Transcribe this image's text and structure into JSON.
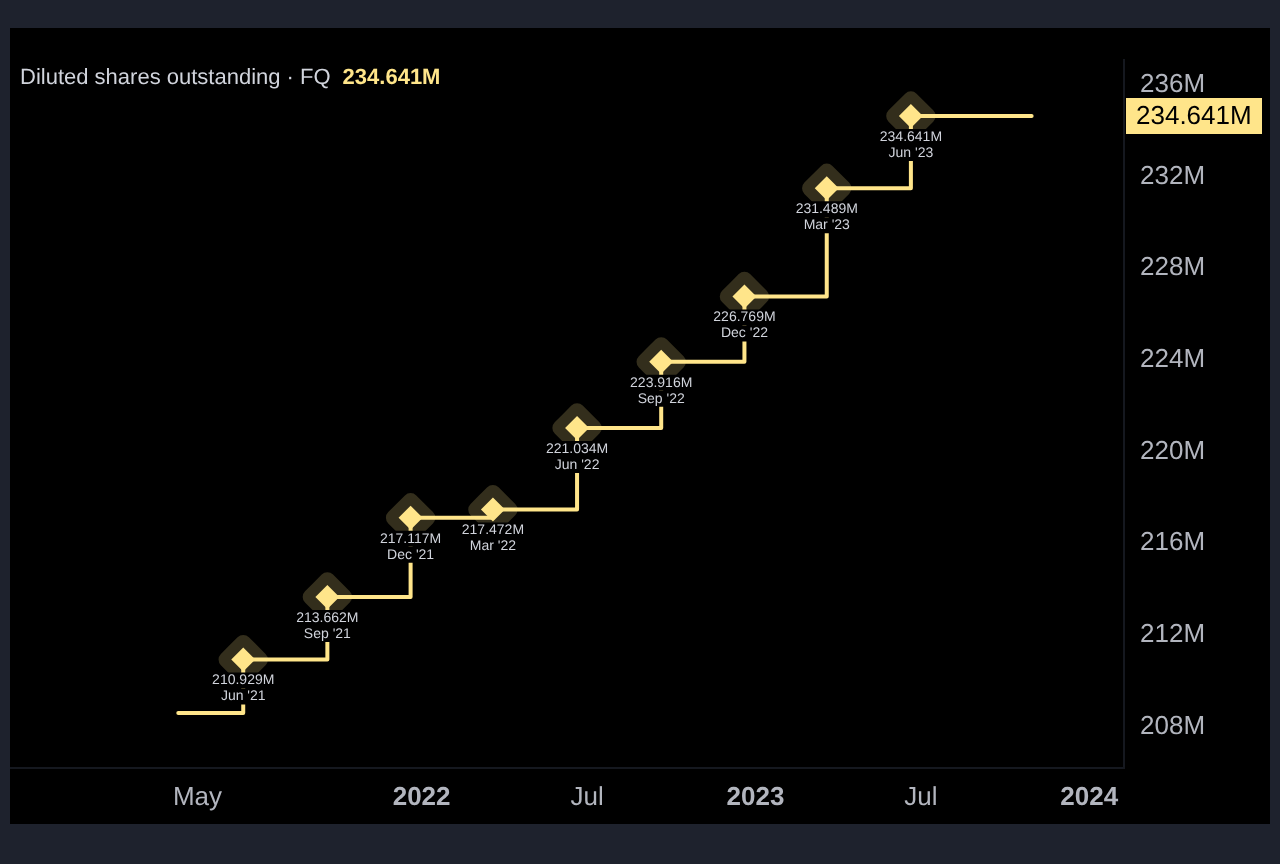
{
  "chart_data": {
    "type": "step",
    "title": "Diluted shares outstanding · FQ",
    "subtitle": "234.641M",
    "x": [
      "2021-04-10",
      "2021-06-20",
      "2021-09-20",
      "2021-12-20",
      "2022-03-20",
      "2022-06-20",
      "2022-09-20",
      "2022-12-20",
      "2023-03-20",
      "2023-06-20",
      "2023-10-30"
    ],
    "series": [
      {
        "color": "#ffe58a",
        "values": [
          208.6,
          210.929,
          213.662,
          217.117,
          217.472,
          221.034,
          223.916,
          226.769,
          231.489,
          234.641,
          234.641
        ],
        "value_labels": [
          null,
          "210.929M",
          "213.662M",
          "217.117M",
          "217.472M",
          "221.034M",
          "223.916M",
          "226.769M",
          "231.489M",
          "234.641M",
          null
        ]
      }
    ],
    "marker": "diamond",
    "xlim": [
      "2020-10-08",
      "2024-02-08"
    ],
    "xticks": [
      {
        "value": "2021-05-01",
        "label": "May"
      },
      {
        "value": "2022-01-01",
        "label": "2022"
      },
      {
        "value": "2022-07-01",
        "label": "Jul"
      },
      {
        "value": "2023-01-01",
        "label": "2023"
      },
      {
        "value": "2023-07-01",
        "label": "Jul"
      },
      {
        "value": "2024-01-01",
        "label": "2024"
      }
    ],
    "ylim": [
      206.2,
      237.1
    ],
    "yticks": [
      {
        "value": 208,
        "label": "208M"
      },
      {
        "value": 212,
        "label": "212M"
      },
      {
        "value": 216,
        "label": "216M"
      },
      {
        "value": 220,
        "label": "220M"
      },
      {
        "value": 224,
        "label": "224M"
      },
      {
        "value": 228,
        "label": "228M"
      },
      {
        "value": 232,
        "label": "232M"
      },
      {
        "value": 236,
        "label": "236M"
      }
    ],
    "annotations": [
      {
        "text": "Jun '21",
        "x": "2021-06-20",
        "y": 210.929
      },
      {
        "text": "Sep '21",
        "x": "2021-09-20",
        "y": 213.662
      },
      {
        "text": "Dec '21",
        "x": "2021-12-20",
        "y": 217.117
      },
      {
        "text": "Mar '22",
        "x": "2022-03-20",
        "y": 217.472
      },
      {
        "text": "Jun '22",
        "x": "2022-06-20",
        "y": 221.034
      },
      {
        "text": "Sep '22",
        "x": "2022-09-20",
        "y": 223.916
      },
      {
        "text": "Dec '22",
        "x": "2022-12-20",
        "y": 226.769
      },
      {
        "text": "Mar '23",
        "x": "2023-03-20",
        "y": 231.489
      },
      {
        "text": "Jun '23",
        "x": "2023-06-20",
        "y": 234.641
      },
      "234.641M"
    ]
  }
}
